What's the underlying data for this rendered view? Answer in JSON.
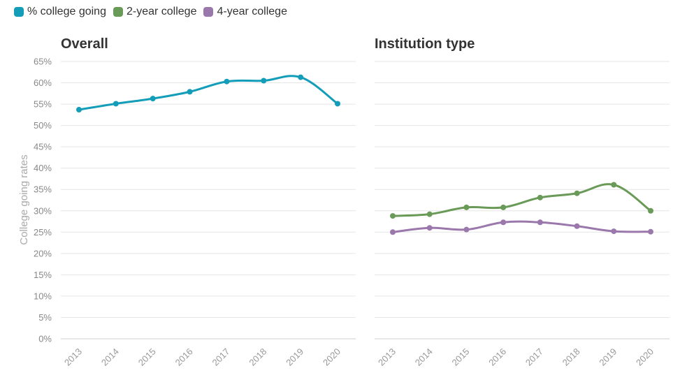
{
  "legend": [
    {
      "label": "% college going",
      "color": "#139db9"
    },
    {
      "label": "2-year college",
      "color": "#6a9a57"
    },
    {
      "label": "4-year college",
      "color": "#9a78ac"
    }
  ],
  "chart_data": [
    {
      "type": "line",
      "title": "Overall",
      "ylabel": "College going rates",
      "xlabel": "",
      "x": [
        "2013",
        "2014",
        "2015",
        "2016",
        "2017",
        "2018",
        "2019",
        "2020"
      ],
      "ylim": [
        0,
        65
      ],
      "yticks": [
        "0%",
        "5%",
        "10%",
        "15%",
        "20%",
        "25%",
        "30%",
        "35%",
        "40%",
        "45%",
        "50%",
        "55%",
        "60%",
        "65%"
      ],
      "grid": true,
      "series": [
        {
          "name": "% college going",
          "color": "#139db9",
          "values": [
            53.7,
            55.1,
            56.3,
            57.9,
            60.3,
            60.5,
            61.3,
            55.1
          ]
        }
      ]
    },
    {
      "type": "line",
      "title": "Institution type",
      "xlabel": "",
      "x": [
        "2013",
        "2014",
        "2015",
        "2016",
        "2017",
        "2018",
        "2019",
        "2020"
      ],
      "ylim": [
        0,
        65
      ],
      "grid": true,
      "series": [
        {
          "name": "2-year college",
          "color": "#6a9a57",
          "values": [
            28.8,
            29.2,
            30.8,
            30.8,
            33.1,
            34.1,
            36.1,
            30.0
          ]
        },
        {
          "name": "4-year college",
          "color": "#9a78ac",
          "values": [
            25.0,
            26.0,
            25.6,
            27.3,
            27.3,
            26.4,
            25.2,
            25.1
          ]
        }
      ]
    }
  ]
}
